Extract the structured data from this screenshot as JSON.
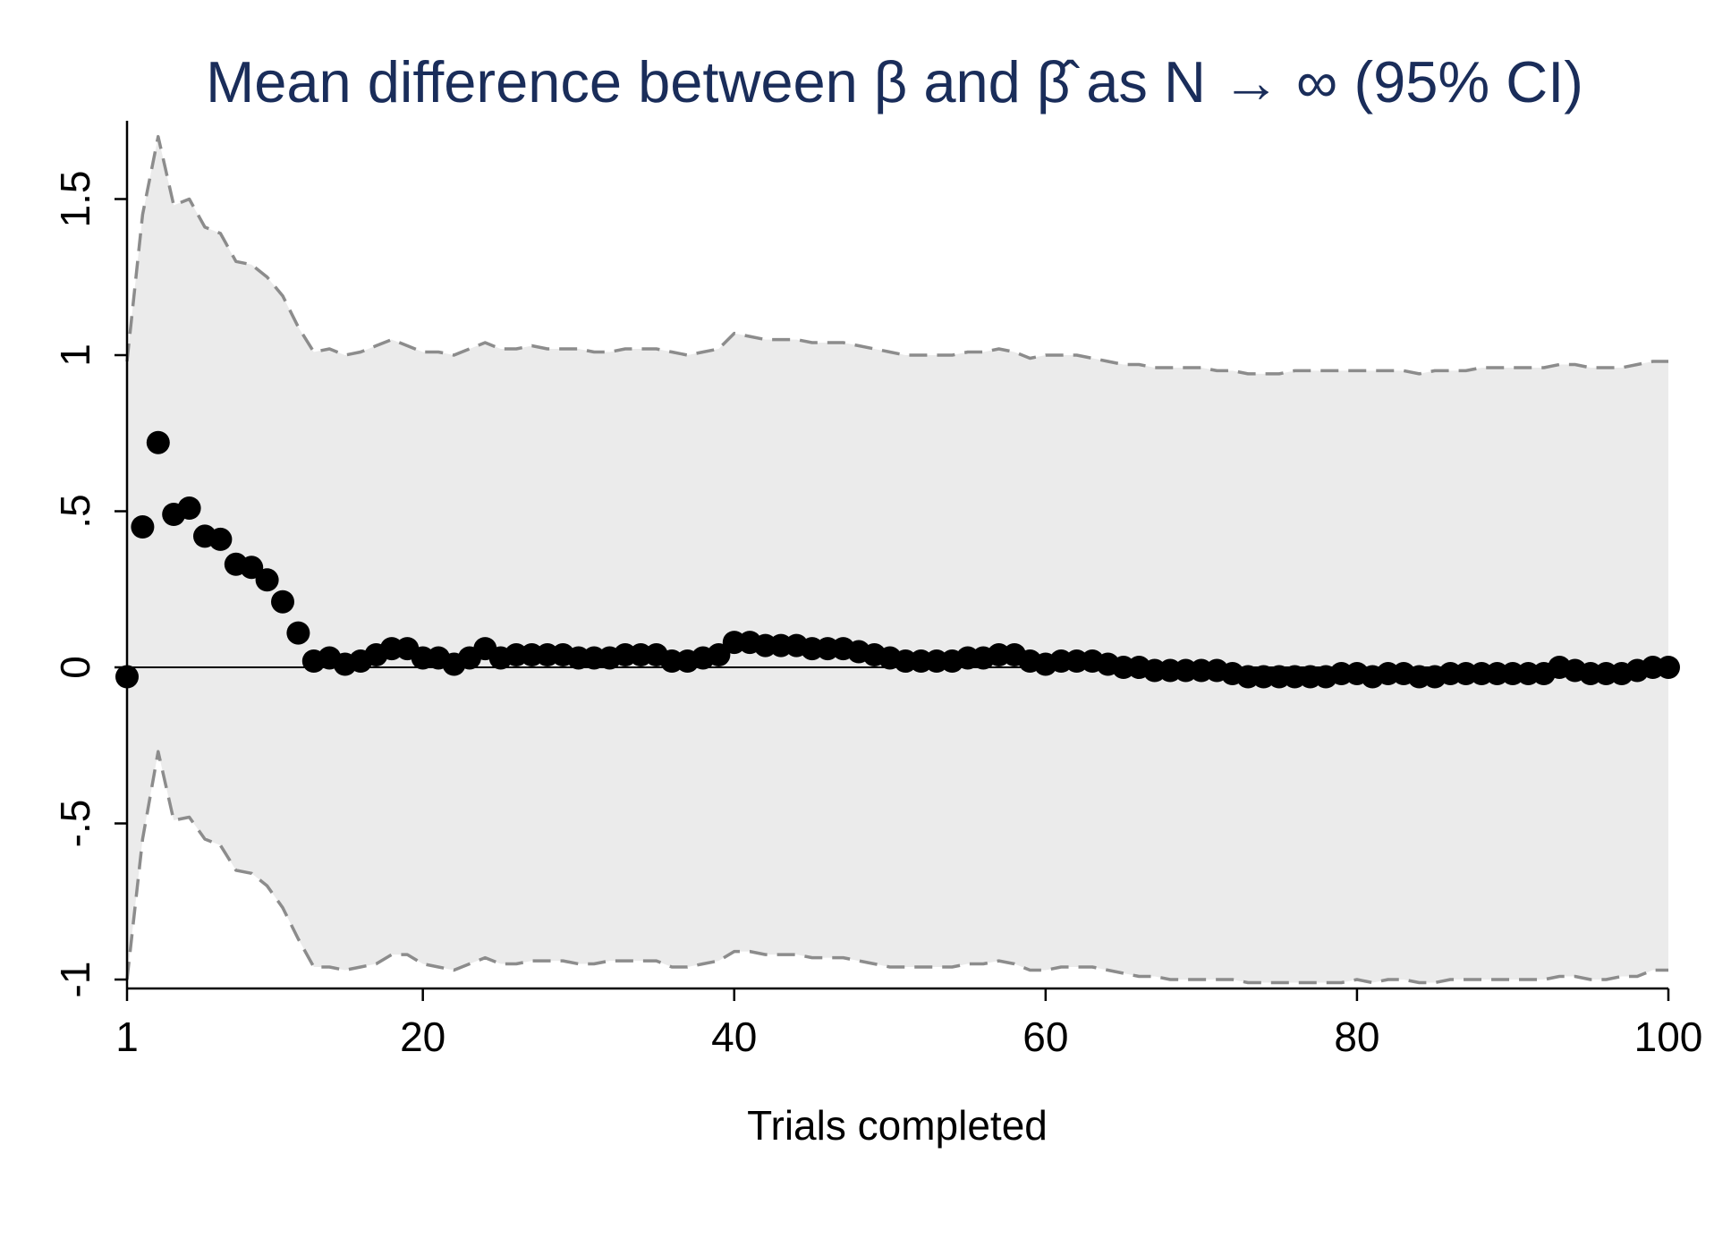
{
  "chart_data": {
    "type": "scatter",
    "title": "Mean difference between β and β̂ as N → ∞ (95% CI)",
    "xlabel": "Trials completed",
    "ylabel": "",
    "xlim": [
      1,
      100
    ],
    "ylim": [
      -1,
      1.5
    ],
    "x_ticks": [
      1,
      20,
      40,
      60,
      80,
      100
    ],
    "x_tick_labels": [
      "1",
      "20",
      "40",
      "60",
      "80",
      "100"
    ],
    "y_ticks": [
      -1,
      -0.5,
      0,
      0.5,
      1,
      1.5
    ],
    "y_tick_labels": [
      "-1",
      "-.5",
      "0",
      ".5",
      "1",
      "1.5"
    ],
    "grid": false,
    "reference_line_y": 0,
    "colors": {
      "title": "#1a2d5a",
      "ci_fill": "#ebebeb",
      "ci_line": "#8c8c8c",
      "points": "#000000",
      "axis": "#000000"
    },
    "series": [
      {
        "style": "markers",
        "x": [
          1,
          2,
          3,
          4,
          5,
          6,
          7,
          8,
          9,
          10,
          11,
          12,
          13,
          14,
          15,
          16,
          17,
          18,
          19,
          20,
          21,
          22,
          23,
          24,
          25,
          26,
          27,
          28,
          29,
          30,
          31,
          32,
          33,
          34,
          35,
          36,
          37,
          38,
          39,
          40,
          41,
          42,
          43,
          44,
          45,
          46,
          47,
          48,
          49,
          50,
          51,
          52,
          53,
          54,
          55,
          56,
          57,
          58,
          59,
          60,
          61,
          62,
          63,
          64,
          65,
          66,
          67,
          68,
          69,
          70,
          71,
          72,
          73,
          74,
          75,
          76,
          77,
          78,
          79,
          80,
          81,
          82,
          83,
          84,
          85,
          86,
          87,
          88,
          89,
          90,
          91,
          92,
          93,
          94,
          95,
          96,
          97,
          98,
          99,
          100
        ],
        "values": [
          -0.03,
          0.45,
          0.72,
          0.49,
          0.51,
          0.42,
          0.41,
          0.33,
          0.32,
          0.28,
          0.21,
          0.11,
          0.02,
          0.03,
          0.01,
          0.02,
          0.04,
          0.06,
          0.06,
          0.03,
          0.03,
          0.01,
          0.03,
          0.06,
          0.03,
          0.04,
          0.04,
          0.04,
          0.04,
          0.03,
          0.03,
          0.03,
          0.04,
          0.04,
          0.04,
          0.02,
          0.02,
          0.03,
          0.04,
          0.08,
          0.08,
          0.07,
          0.07,
          0.07,
          0.06,
          0.06,
          0.06,
          0.05,
          0.04,
          0.03,
          0.02,
          0.02,
          0.02,
          0.02,
          0.03,
          0.03,
          0.04,
          0.04,
          0.02,
          0.01,
          0.02,
          0.02,
          0.02,
          0.01,
          0.0,
          0.0,
          -0.01,
          -0.01,
          -0.01,
          -0.01,
          -0.01,
          -0.02,
          -0.03,
          -0.03,
          -0.03,
          -0.03,
          -0.03,
          -0.03,
          -0.02,
          -0.02,
          -0.03,
          -0.02,
          -0.02,
          -0.03,
          -0.03,
          -0.02,
          -0.02,
          -0.02,
          -0.02,
          -0.02,
          -0.02,
          -0.02,
          0.0,
          -0.01,
          -0.02,
          -0.02,
          -0.02,
          -0.01,
          0.0,
          0.0
        ]
      },
      {
        "style": "dashed-line",
        "x": [
          1,
          2,
          3,
          4,
          5,
          6,
          7,
          8,
          9,
          10,
          11,
          12,
          13,
          14,
          15,
          16,
          17,
          18,
          19,
          20,
          21,
          22,
          23,
          24,
          25,
          26,
          27,
          28,
          29,
          30,
          31,
          32,
          33,
          34,
          35,
          36,
          37,
          38,
          39,
          40,
          41,
          42,
          43,
          44,
          45,
          46,
          47,
          48,
          49,
          50,
          51,
          52,
          53,
          54,
          55,
          56,
          57,
          58,
          59,
          60,
          61,
          62,
          63,
          64,
          65,
          66,
          67,
          68,
          69,
          70,
          71,
          72,
          73,
          74,
          75,
          76,
          77,
          78,
          79,
          80,
          81,
          82,
          83,
          84,
          85,
          86,
          87,
          88,
          89,
          90,
          91,
          92,
          93,
          94,
          95,
          96,
          97,
          98,
          99,
          100
        ],
        "values": [
          0.98,
          1.45,
          1.7,
          1.48,
          1.5,
          1.41,
          1.39,
          1.3,
          1.29,
          1.25,
          1.19,
          1.09,
          1.01,
          1.02,
          1.0,
          1.01,
          1.03,
          1.05,
          1.03,
          1.01,
          1.01,
          1.0,
          1.02,
          1.04,
          1.02,
          1.02,
          1.03,
          1.02,
          1.02,
          1.02,
          1.01,
          1.01,
          1.02,
          1.02,
          1.02,
          1.01,
          1.0,
          1.01,
          1.02,
          1.07,
          1.06,
          1.05,
          1.05,
          1.05,
          1.04,
          1.04,
          1.04,
          1.03,
          1.02,
          1.01,
          1.0,
          1.0,
          1.0,
          1.0,
          1.01,
          1.01,
          1.02,
          1.01,
          0.99,
          1.0,
          1.0,
          1.0,
          0.99,
          0.98,
          0.97,
          0.97,
          0.96,
          0.96,
          0.96,
          0.96,
          0.95,
          0.95,
          0.94,
          0.94,
          0.94,
          0.95,
          0.95,
          0.95,
          0.95,
          0.95,
          0.95,
          0.95,
          0.95,
          0.94,
          0.95,
          0.95,
          0.95,
          0.96,
          0.96,
          0.96,
          0.96,
          0.96,
          0.97,
          0.97,
          0.96,
          0.96,
          0.96,
          0.97,
          0.98,
          0.98
        ]
      },
      {
        "style": "dashed-line",
        "x": [
          1,
          2,
          3,
          4,
          5,
          6,
          7,
          8,
          9,
          10,
          11,
          12,
          13,
          14,
          15,
          16,
          17,
          18,
          19,
          20,
          21,
          22,
          23,
          24,
          25,
          26,
          27,
          28,
          29,
          30,
          31,
          32,
          33,
          34,
          35,
          36,
          37,
          38,
          39,
          40,
          41,
          42,
          43,
          44,
          45,
          46,
          47,
          48,
          49,
          50,
          51,
          52,
          53,
          54,
          55,
          56,
          57,
          58,
          59,
          60,
          61,
          62,
          63,
          64,
          65,
          66,
          67,
          68,
          69,
          70,
          71,
          72,
          73,
          74,
          75,
          76,
          77,
          78,
          79,
          80,
          81,
          82,
          83,
          84,
          85,
          86,
          87,
          88,
          89,
          90,
          91,
          92,
          93,
          94,
          95,
          96,
          97,
          98,
          99,
          100
        ],
        "values": [
          -1.0,
          -0.55,
          -0.27,
          -0.49,
          -0.48,
          -0.55,
          -0.57,
          -0.65,
          -0.66,
          -0.7,
          -0.77,
          -0.87,
          -0.96,
          -0.96,
          -0.97,
          -0.96,
          -0.95,
          -0.92,
          -0.92,
          -0.95,
          -0.96,
          -0.97,
          -0.95,
          -0.93,
          -0.95,
          -0.95,
          -0.94,
          -0.94,
          -0.94,
          -0.95,
          -0.95,
          -0.94,
          -0.94,
          -0.94,
          -0.94,
          -0.96,
          -0.96,
          -0.95,
          -0.94,
          -0.91,
          -0.91,
          -0.92,
          -0.92,
          -0.92,
          -0.93,
          -0.93,
          -0.93,
          -0.94,
          -0.95,
          -0.96,
          -0.96,
          -0.96,
          -0.96,
          -0.96,
          -0.95,
          -0.95,
          -0.94,
          -0.95,
          -0.97,
          -0.97,
          -0.96,
          -0.96,
          -0.96,
          -0.97,
          -0.98,
          -0.99,
          -0.99,
          -1.0,
          -1.0,
          -1.0,
          -1.0,
          -1.0,
          -1.01,
          -1.01,
          -1.01,
          -1.01,
          -1.01,
          -1.01,
          -1.01,
          -1.0,
          -1.01,
          -1.0,
          -1.0,
          -1.01,
          -1.01,
          -1.0,
          -1.0,
          -1.0,
          -1.0,
          -1.0,
          -1.0,
          -1.0,
          -0.99,
          -0.99,
          -1.0,
          -1.0,
          -0.99,
          -0.99,
          -0.97,
          -0.97
        ]
      }
    ]
  }
}
